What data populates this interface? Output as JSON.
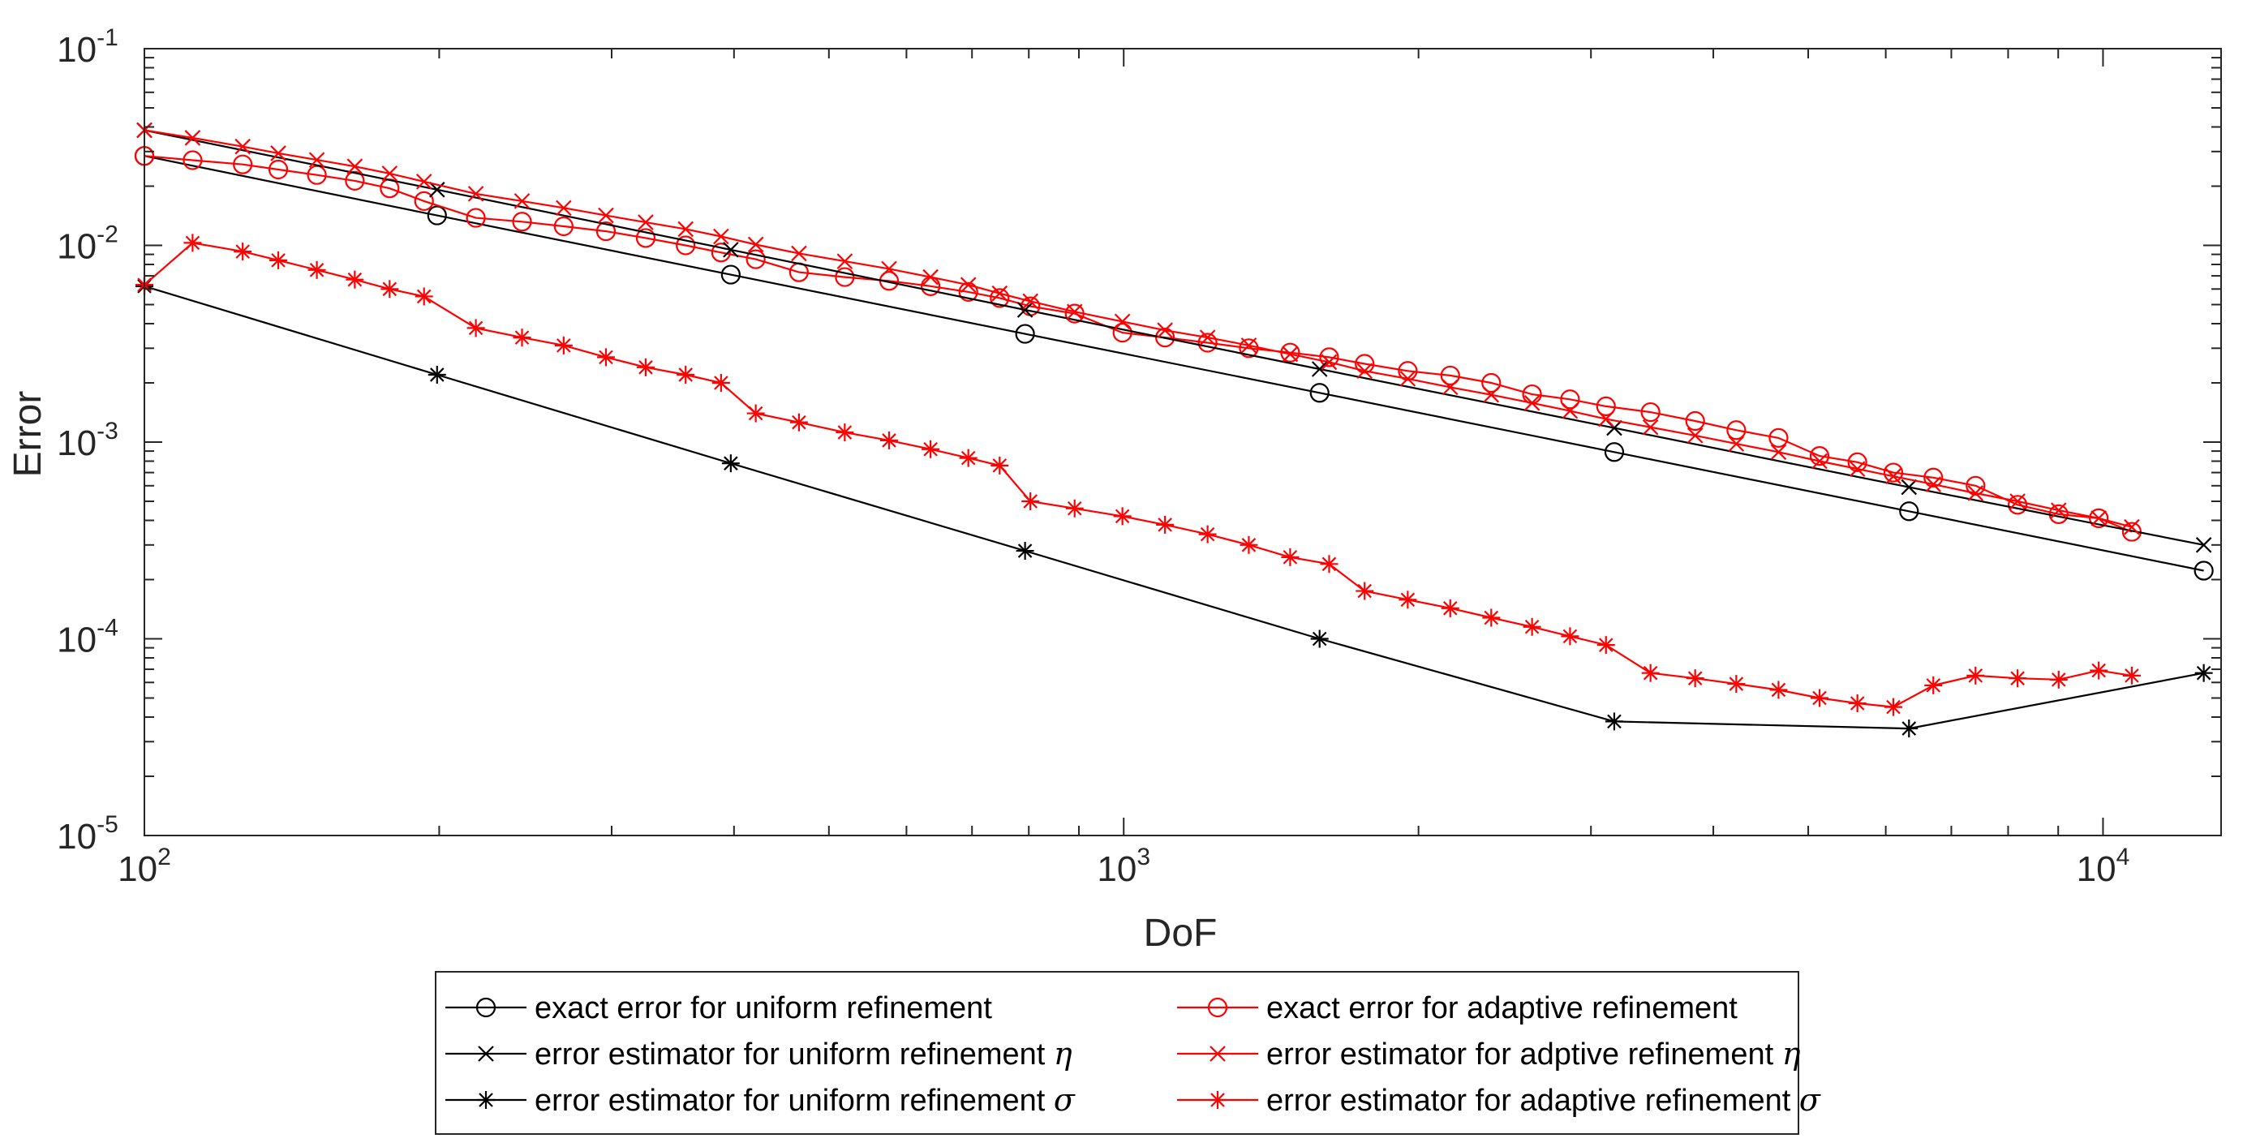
{
  "colors": {
    "black_series": "#000000",
    "red_series": "#ff0000",
    "axis": "#262626",
    "background": "#ffffff"
  },
  "chart_data": {
    "type": "line",
    "title": "",
    "xlabel": "DoF",
    "ylabel": "Error",
    "xscale": "log",
    "yscale": "log",
    "xlim": [
      100,
      13200
    ],
    "ylim": [
      1e-05,
      0.1
    ],
    "x_ticks": [
      {
        "value": 100,
        "base": "10",
        "exp": "2"
      },
      {
        "value": 1000,
        "base": "10",
        "exp": "3"
      },
      {
        "value": 10000,
        "base": "10",
        "exp": "4"
      }
    ],
    "y_ticks": [
      {
        "value": 0.1,
        "base": "10",
        "exp": "-1"
      },
      {
        "value": 0.01,
        "base": "10",
        "exp": "-2"
      },
      {
        "value": 0.001,
        "base": "10",
        "exp": "-3"
      },
      {
        "value": 0.0001,
        "base": "10",
        "exp": "-4"
      },
      {
        "value": 1e-05,
        "base": "10",
        "exp": "-5"
      }
    ],
    "legend_position": "below",
    "series": [
      {
        "name": "exact error for uniform refinement",
        "symbol": "",
        "color": "#000000",
        "marker": "o",
        "x": [
          100,
          199,
          397,
          793,
          1585,
          3169,
          6337,
          12673
        ],
        "y": [
          0.0285,
          0.0142,
          0.0071,
          0.00355,
          0.00178,
          0.00089,
          0.000445,
          0.000222
        ]
      },
      {
        "name": "exact error for adaptive refinement",
        "symbol": "",
        "color": "#ff0000",
        "marker": "o",
        "x": [
          100,
          112,
          126,
          137,
          150,
          164,
          178,
          193,
          218,
          243,
          268,
          296,
          325,
          357,
          388,
          421,
          466,
          519,
          576,
          635,
          694,
          747,
          803,
          891,
          997,
          1102,
          1218,
          1342,
          1479,
          1621,
          1762,
          1950,
          2155,
          2373,
          2612,
          2856,
          3108,
          3451,
          3833,
          4222,
          4663,
          5135,
          5613,
          6108,
          6710,
          7410,
          8180,
          9010,
          9900,
          10700
        ],
        "y": [
          0.0285,
          0.0271,
          0.0258,
          0.0243,
          0.0228,
          0.0213,
          0.0195,
          0.0168,
          0.0138,
          0.0132,
          0.0125,
          0.0118,
          0.0109,
          0.01,
          0.0092,
          0.0085,
          0.0073,
          0.0069,
          0.0066,
          0.0062,
          0.0058,
          0.0054,
          0.0049,
          0.0045,
          0.0036,
          0.0034,
          0.0032,
          0.003,
          0.00285,
          0.0027,
          0.0025,
          0.0023,
          0.00218,
          0.002,
          0.00175,
          0.00165,
          0.00152,
          0.00142,
          0.00128,
          0.00115,
          0.00105,
          0.00085,
          0.00079,
          0.0007,
          0.00066,
          0.0006,
          0.00048,
          0.00043,
          0.00041,
          0.00035
        ]
      },
      {
        "name": "error estimator for uniform refinement",
        "symbol": "η",
        "color": "#000000",
        "marker": "x",
        "x": [
          100,
          199,
          397,
          793,
          1585,
          3169,
          6337,
          12673
        ],
        "y": [
          0.0385,
          0.0192,
          0.0095,
          0.0047,
          0.00235,
          0.00118,
          0.00059,
          0.0003
        ]
      },
      {
        "name": "error estimator for adptive refinement",
        "symbol": "η",
        "color": "#ff0000",
        "marker": "x",
        "x": [
          100,
          112,
          126,
          137,
          150,
          164,
          178,
          193,
          218,
          243,
          268,
          296,
          325,
          357,
          388,
          421,
          466,
          519,
          576,
          635,
          694,
          747,
          803,
          891,
          997,
          1102,
          1218,
          1342,
          1479,
          1621,
          1762,
          1950,
          2155,
          2373,
          2612,
          2856,
          3108,
          3451,
          3833,
          4222,
          4663,
          5135,
          5613,
          6108,
          6710,
          7410,
          8180,
          9010,
          9900,
          10700
        ],
        "y": [
          0.0385,
          0.0352,
          0.0318,
          0.0294,
          0.0272,
          0.0252,
          0.0232,
          0.0211,
          0.0183,
          0.0168,
          0.0155,
          0.0142,
          0.0131,
          0.0121,
          0.0111,
          0.0101,
          0.0091,
          0.0083,
          0.0076,
          0.0069,
          0.0063,
          0.0057,
          0.0052,
          0.0046,
          0.0041,
          0.0037,
          0.0034,
          0.0031,
          0.0028,
          0.00255,
          0.0023,
          0.0021,
          0.0019,
          0.00174,
          0.00158,
          0.00144,
          0.00131,
          0.00119,
          0.00108,
          0.00098,
          0.00089,
          0.0008,
          0.00073,
          0.00067,
          0.00061,
          0.00055,
          0.0005,
          0.00045,
          0.00041,
          0.00037
        ]
      },
      {
        "name": "error estimator for uniform refinement",
        "symbol": "σ",
        "color": "#000000",
        "marker": "*",
        "x": [
          100,
          199,
          397,
          793,
          1585,
          3169,
          6337,
          12673
        ],
        "y": [
          0.0062,
          0.0022,
          0.00078,
          0.00028,
          0.0001,
          3.8e-05,
          3.5e-05,
          6.7e-05
        ]
      },
      {
        "name": "error estimator for adaptive refinement",
        "symbol": "σ",
        "color": "#ff0000",
        "marker": "*",
        "x": [
          100,
          112,
          126,
          137,
          150,
          164,
          178,
          193,
          218,
          243,
          268,
          296,
          325,
          357,
          388,
          421,
          466,
          519,
          576,
          635,
          694,
          747,
          803,
          891,
          997,
          1102,
          1218,
          1342,
          1479,
          1621,
          1762,
          1950,
          2155,
          2373,
          2612,
          2856,
          3108,
          3451,
          3833,
          4222,
          4663,
          5135,
          5613,
          6108,
          6710,
          7410,
          8180,
          9010,
          9900,
          10700
        ],
        "y": [
          0.0063,
          0.0103,
          0.0093,
          0.0084,
          0.0075,
          0.0067,
          0.006,
          0.0055,
          0.0038,
          0.0034,
          0.0031,
          0.0027,
          0.0024,
          0.0022,
          0.002,
          0.0014,
          0.00126,
          0.00112,
          0.00102,
          0.00092,
          0.00083,
          0.00076,
          0.0005,
          0.00046,
          0.00042,
          0.00038,
          0.00034,
          0.0003,
          0.00026,
          0.00024,
          0.000175,
          0.000158,
          0.000143,
          0.000128,
          0.000115,
          0.000103,
          9.3e-05,
          6.7e-05,
          6.3e-05,
          5.9e-05,
          5.5e-05,
          5e-05,
          4.7e-05,
          4.5e-05,
          5.8e-05,
          6.5e-05,
          6.3e-05,
          6.2e-05,
          6.9e-05,
          6.5e-05
        ]
      }
    ]
  }
}
